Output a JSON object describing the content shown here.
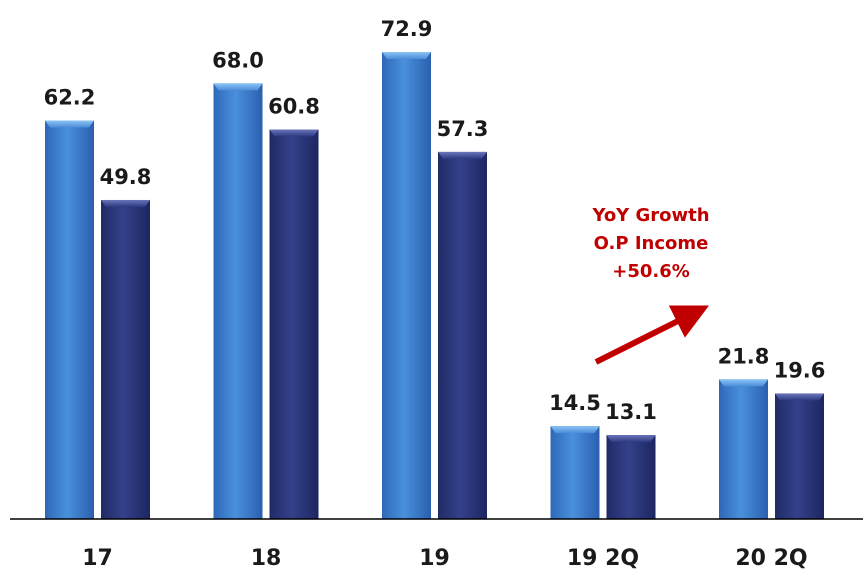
{
  "chart_data": {
    "type": "bar",
    "categories": [
      "17",
      "18",
      "19",
      "19 2Q",
      "20 2Q"
    ],
    "series": [
      {
        "values": [
          62.2,
          68.0,
          72.9,
          14.5,
          21.8
        ],
        "value_labels": [
          "62.2",
          "68.0",
          "72.9",
          "14.5",
          "21.8"
        ],
        "color": "#3d7fd0"
      },
      {
        "values": [
          49.8,
          60.8,
          57.3,
          13.1,
          19.6
        ],
        "value_labels": [
          "49.8",
          "60.8",
          "57.3",
          "13.1",
          "19.6"
        ],
        "color": "#2a3578"
      }
    ],
    "ylim": [
      0,
      80
    ],
    "grid": false,
    "legend": "none",
    "annotation": {
      "lines": [
        "YoY Growth",
        "O.P Income",
        "+50.6%"
      ],
      "color": "#c00000",
      "arrow": true
    }
  }
}
